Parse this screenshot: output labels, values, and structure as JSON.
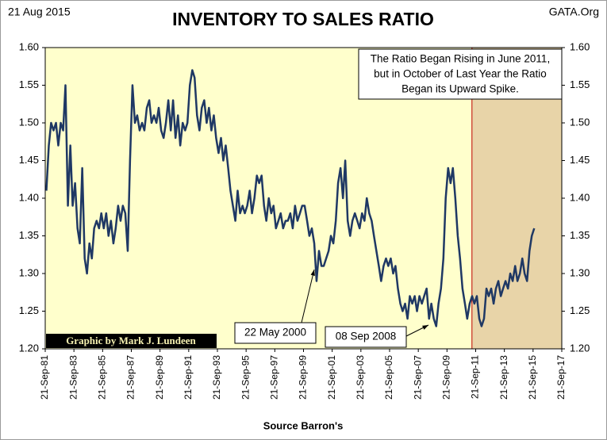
{
  "chart_data": {
    "type": "line",
    "title": "INVENTORY TO SALES RATIO",
    "date": "21 Aug 2015",
    "site": "GATA.Org",
    "credit": "Graphic by Mark J. Lundeen",
    "xlabel": "Source Barron's",
    "callout": [
      "The Ratio Began Rising in June 2011,",
      "but in October of Last Year the Ratio",
      "Began its Upward Spike."
    ],
    "annotations": [
      {
        "text": "22 May 2000"
      },
      {
        "text": "08 Sep 2008"
      }
    ],
    "highlight_xrange": [
      2011.46,
      2017.72
    ],
    "highlight_color": "#e8d4a8",
    "background": "#ffffcc",
    "xlim": [
      1981.72,
      2017.72
    ],
    "xticks": [
      {
        "value": 1981.72,
        "label": "21-Sep-81"
      },
      {
        "value": 1983.72,
        "label": "21-Sep-83"
      },
      {
        "value": 1985.72,
        "label": "21-Sep-85"
      },
      {
        "value": 1987.72,
        "label": "21-Sep-87"
      },
      {
        "value": 1989.72,
        "label": "21-Sep-89"
      },
      {
        "value": 1991.72,
        "label": "21-Sep-91"
      },
      {
        "value": 1993.72,
        "label": "21-Sep-93"
      },
      {
        "value": 1995.72,
        "label": "21-Sep-95"
      },
      {
        "value": 1997.72,
        "label": "21-Sep-97"
      },
      {
        "value": 1999.72,
        "label": "21-Sep-99"
      },
      {
        "value": 2001.72,
        "label": "21-Sep-01"
      },
      {
        "value": 2003.72,
        "label": "21-Sep-03"
      },
      {
        "value": 2005.72,
        "label": "21-Sep-05"
      },
      {
        "value": 2007.72,
        "label": "21-Sep-07"
      },
      {
        "value": 2009.72,
        "label": "21-Sep-09"
      },
      {
        "value": 2011.72,
        "label": "21-Sep-11"
      },
      {
        "value": 2013.72,
        "label": "21-Sep-13"
      },
      {
        "value": 2015.72,
        "label": "21-Sep-15"
      },
      {
        "value": 2017.72,
        "label": "21-Sep-17"
      }
    ],
    "ylim": [
      1.2,
      1.6
    ],
    "yticks": [
      {
        "value": 1.2,
        "label": "1.20"
      },
      1.25,
      {
        "value": 1.3,
        "label": "1.30"
      },
      1.35,
      {
        "value": 1.4,
        "label": "1.40"
      },
      1.45,
      {
        "value": 1.5,
        "label": "1.50"
      },
      1.55,
      {
        "value": 1.6,
        "label": "1.60"
      }
    ],
    "grid": false,
    "x": [
      1981.8,
      1981.97,
      1982.13,
      1982.3,
      1982.47,
      1982.63,
      1982.8,
      1982.97,
      1983.13,
      1983.3,
      1983.47,
      1983.63,
      1983.8,
      1983.97,
      1984.13,
      1984.3,
      1984.47,
      1984.63,
      1984.8,
      1984.97,
      1985.13,
      1985.3,
      1985.47,
      1985.63,
      1985.8,
      1985.97,
      1986.13,
      1986.3,
      1986.47,
      1986.63,
      1986.8,
      1986.97,
      1987.13,
      1987.3,
      1987.47,
      1987.63,
      1987.8,
      1987.97,
      1988.13,
      1988.3,
      1988.47,
      1988.63,
      1988.8,
      1988.97,
      1989.13,
      1989.3,
      1989.47,
      1989.63,
      1989.8,
      1989.97,
      1990.13,
      1990.3,
      1990.47,
      1990.63,
      1990.8,
      1990.97,
      1991.13,
      1991.3,
      1991.47,
      1991.63,
      1991.8,
      1991.97,
      1992.13,
      1992.3,
      1992.47,
      1992.63,
      1992.8,
      1992.97,
      1993.13,
      1993.3,
      1993.47,
      1993.63,
      1993.8,
      1993.97,
      1994.13,
      1994.3,
      1994.47,
      1994.63,
      1994.8,
      1994.97,
      1995.13,
      1995.3,
      1995.47,
      1995.63,
      1995.8,
      1995.97,
      1996.13,
      1996.3,
      1996.47,
      1996.63,
      1996.8,
      1996.97,
      1997.13,
      1997.3,
      1997.47,
      1997.63,
      1997.8,
      1997.97,
      1998.13,
      1998.3,
      1998.47,
      1998.63,
      1998.8,
      1998.97,
      1999.13,
      1999.3,
      1999.47,
      1999.63,
      1999.8,
      1999.97,
      2000.13,
      2000.3,
      2000.47,
      2000.63,
      2000.8,
      2000.97,
      2001.13,
      2001.3,
      2001.47,
      2001.63,
      2001.8,
      2001.97,
      2002.13,
      2002.3,
      2002.47,
      2002.63,
      2002.8,
      2002.97,
      2003.13,
      2003.3,
      2003.47,
      2003.63,
      2003.8,
      2003.97,
      2004.13,
      2004.3,
      2004.47,
      2004.63,
      2004.8,
      2004.97,
      2005.13,
      2005.3,
      2005.47,
      2005.63,
      2005.8,
      2005.97,
      2006.13,
      2006.3,
      2006.47,
      2006.63,
      2006.8,
      2006.97,
      2007.13,
      2007.3,
      2007.47,
      2007.63,
      2007.8,
      2007.97,
      2008.13,
      2008.3,
      2008.47,
      2008.63,
      2008.8,
      2008.97,
      2009.13,
      2009.3,
      2009.47,
      2009.63,
      2009.8,
      2009.97,
      2010.13,
      2010.3,
      2010.47,
      2010.63,
      2010.8,
      2010.97,
      2011.13,
      2011.3,
      2011.47,
      2011.63,
      2011.8,
      2011.97,
      2012.13,
      2012.3,
      2012.47,
      2012.63,
      2012.8,
      2012.97,
      2013.13,
      2013.3,
      2013.47,
      2013.63,
      2013.8,
      2013.97,
      2014.13,
      2014.3,
      2014.47,
      2014.63,
      2014.8,
      2014.97,
      2015.13,
      2015.3,
      2015.47,
      2015.63,
      2015.8
    ],
    "series": [
      {
        "color": "#1f3864",
        "values": [
          1.41,
          1.47,
          1.5,
          1.49,
          1.5,
          1.47,
          1.5,
          1.49,
          1.55,
          1.39,
          1.47,
          1.39,
          1.42,
          1.36,
          1.34,
          1.44,
          1.32,
          1.3,
          1.34,
          1.32,
          1.36,
          1.37,
          1.36,
          1.38,
          1.36,
          1.38,
          1.35,
          1.37,
          1.34,
          1.36,
          1.39,
          1.37,
          1.39,
          1.38,
          1.33,
          1.45,
          1.55,
          1.5,
          1.51,
          1.49,
          1.5,
          1.49,
          1.52,
          1.53,
          1.5,
          1.51,
          1.5,
          1.52,
          1.49,
          1.48,
          1.5,
          1.53,
          1.49,
          1.53,
          1.48,
          1.51,
          1.47,
          1.5,
          1.49,
          1.5,
          1.55,
          1.57,
          1.56,
          1.51,
          1.49,
          1.52,
          1.53,
          1.5,
          1.52,
          1.49,
          1.51,
          1.48,
          1.46,
          1.48,
          1.45,
          1.47,
          1.44,
          1.41,
          1.39,
          1.37,
          1.41,
          1.38,
          1.39,
          1.38,
          1.39,
          1.41,
          1.38,
          1.4,
          1.43,
          1.42,
          1.43,
          1.39,
          1.37,
          1.4,
          1.38,
          1.39,
          1.36,
          1.37,
          1.38,
          1.36,
          1.37,
          1.37,
          1.38,
          1.36,
          1.39,
          1.37,
          1.38,
          1.39,
          1.39,
          1.37,
          1.35,
          1.36,
          1.34,
          1.29,
          1.33,
          1.31,
          1.31,
          1.32,
          1.33,
          1.35,
          1.34,
          1.37,
          1.42,
          1.44,
          1.4,
          1.45,
          1.37,
          1.35,
          1.37,
          1.38,
          1.37,
          1.36,
          1.38,
          1.37,
          1.4,
          1.38,
          1.37,
          1.35,
          1.33,
          1.31,
          1.29,
          1.31,
          1.32,
          1.31,
          1.32,
          1.3,
          1.31,
          1.28,
          1.26,
          1.25,
          1.26,
          1.24,
          1.27,
          1.26,
          1.27,
          1.25,
          1.27,
          1.26,
          1.27,
          1.28,
          1.24,
          1.26,
          1.24,
          1.23,
          1.26,
          1.28,
          1.32,
          1.4,
          1.44,
          1.42,
          1.44,
          1.4,
          1.35,
          1.32,
          1.28,
          1.26,
          1.24,
          1.26,
          1.27,
          1.26,
          1.27,
          1.24,
          1.23,
          1.24,
          1.28,
          1.27,
          1.28,
          1.26,
          1.28,
          1.29,
          1.27,
          1.28,
          1.29,
          1.28,
          1.3,
          1.29,
          1.31,
          1.29,
          1.3,
          1.32,
          1.3,
          1.29,
          1.33,
          1.35,
          1.36
        ]
      }
    ]
  }
}
